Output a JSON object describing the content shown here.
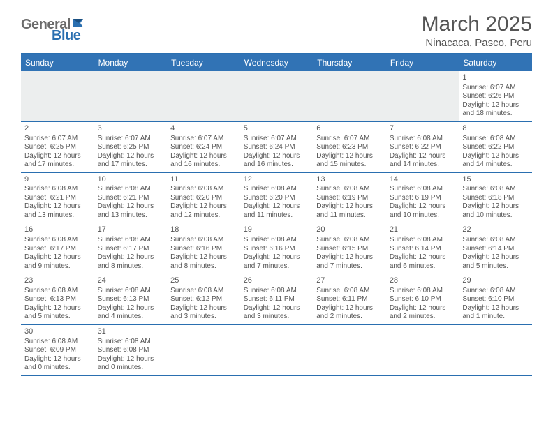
{
  "brand": {
    "gray": "General",
    "blue": "Blue"
  },
  "title": "March 2025",
  "location": "Ninacaca, Pasco, Peru",
  "colors": {
    "header_bg": "#3173b5",
    "rule": "#2a6fb0",
    "text": "#555555",
    "logo_gray": "#6b6b6b",
    "logo_blue": "#2a6fb0",
    "empty_row_bg": "#eceeee"
  },
  "weekdays": [
    "Sunday",
    "Monday",
    "Tuesday",
    "Wednesday",
    "Thursday",
    "Friday",
    "Saturday"
  ],
  "weeks": [
    [
      null,
      null,
      null,
      null,
      null,
      null,
      {
        "d": "1",
        "sr": "Sunrise: 6:07 AM",
        "ss": "Sunset: 6:26 PM",
        "dl": "Daylight: 12 hours and 18 minutes."
      }
    ],
    [
      {
        "d": "2",
        "sr": "Sunrise: 6:07 AM",
        "ss": "Sunset: 6:25 PM",
        "dl": "Daylight: 12 hours and 17 minutes."
      },
      {
        "d": "3",
        "sr": "Sunrise: 6:07 AM",
        "ss": "Sunset: 6:25 PM",
        "dl": "Daylight: 12 hours and 17 minutes."
      },
      {
        "d": "4",
        "sr": "Sunrise: 6:07 AM",
        "ss": "Sunset: 6:24 PM",
        "dl": "Daylight: 12 hours and 16 minutes."
      },
      {
        "d": "5",
        "sr": "Sunrise: 6:07 AM",
        "ss": "Sunset: 6:24 PM",
        "dl": "Daylight: 12 hours and 16 minutes."
      },
      {
        "d": "6",
        "sr": "Sunrise: 6:07 AM",
        "ss": "Sunset: 6:23 PM",
        "dl": "Daylight: 12 hours and 15 minutes."
      },
      {
        "d": "7",
        "sr": "Sunrise: 6:08 AM",
        "ss": "Sunset: 6:22 PM",
        "dl": "Daylight: 12 hours and 14 minutes."
      },
      {
        "d": "8",
        "sr": "Sunrise: 6:08 AM",
        "ss": "Sunset: 6:22 PM",
        "dl": "Daylight: 12 hours and 14 minutes."
      }
    ],
    [
      {
        "d": "9",
        "sr": "Sunrise: 6:08 AM",
        "ss": "Sunset: 6:21 PM",
        "dl": "Daylight: 12 hours and 13 minutes."
      },
      {
        "d": "10",
        "sr": "Sunrise: 6:08 AM",
        "ss": "Sunset: 6:21 PM",
        "dl": "Daylight: 12 hours and 13 minutes."
      },
      {
        "d": "11",
        "sr": "Sunrise: 6:08 AM",
        "ss": "Sunset: 6:20 PM",
        "dl": "Daylight: 12 hours and 12 minutes."
      },
      {
        "d": "12",
        "sr": "Sunrise: 6:08 AM",
        "ss": "Sunset: 6:20 PM",
        "dl": "Daylight: 12 hours and 11 minutes."
      },
      {
        "d": "13",
        "sr": "Sunrise: 6:08 AM",
        "ss": "Sunset: 6:19 PM",
        "dl": "Daylight: 12 hours and 11 minutes."
      },
      {
        "d": "14",
        "sr": "Sunrise: 6:08 AM",
        "ss": "Sunset: 6:19 PM",
        "dl": "Daylight: 12 hours and 10 minutes."
      },
      {
        "d": "15",
        "sr": "Sunrise: 6:08 AM",
        "ss": "Sunset: 6:18 PM",
        "dl": "Daylight: 12 hours and 10 minutes."
      }
    ],
    [
      {
        "d": "16",
        "sr": "Sunrise: 6:08 AM",
        "ss": "Sunset: 6:17 PM",
        "dl": "Daylight: 12 hours and 9 minutes."
      },
      {
        "d": "17",
        "sr": "Sunrise: 6:08 AM",
        "ss": "Sunset: 6:17 PM",
        "dl": "Daylight: 12 hours and 8 minutes."
      },
      {
        "d": "18",
        "sr": "Sunrise: 6:08 AM",
        "ss": "Sunset: 6:16 PM",
        "dl": "Daylight: 12 hours and 8 minutes."
      },
      {
        "d": "19",
        "sr": "Sunrise: 6:08 AM",
        "ss": "Sunset: 6:16 PM",
        "dl": "Daylight: 12 hours and 7 minutes."
      },
      {
        "d": "20",
        "sr": "Sunrise: 6:08 AM",
        "ss": "Sunset: 6:15 PM",
        "dl": "Daylight: 12 hours and 7 minutes."
      },
      {
        "d": "21",
        "sr": "Sunrise: 6:08 AM",
        "ss": "Sunset: 6:14 PM",
        "dl": "Daylight: 12 hours and 6 minutes."
      },
      {
        "d": "22",
        "sr": "Sunrise: 6:08 AM",
        "ss": "Sunset: 6:14 PM",
        "dl": "Daylight: 12 hours and 5 minutes."
      }
    ],
    [
      {
        "d": "23",
        "sr": "Sunrise: 6:08 AM",
        "ss": "Sunset: 6:13 PM",
        "dl": "Daylight: 12 hours and 5 minutes."
      },
      {
        "d": "24",
        "sr": "Sunrise: 6:08 AM",
        "ss": "Sunset: 6:13 PM",
        "dl": "Daylight: 12 hours and 4 minutes."
      },
      {
        "d": "25",
        "sr": "Sunrise: 6:08 AM",
        "ss": "Sunset: 6:12 PM",
        "dl": "Daylight: 12 hours and 3 minutes."
      },
      {
        "d": "26",
        "sr": "Sunrise: 6:08 AM",
        "ss": "Sunset: 6:11 PM",
        "dl": "Daylight: 12 hours and 3 minutes."
      },
      {
        "d": "27",
        "sr": "Sunrise: 6:08 AM",
        "ss": "Sunset: 6:11 PM",
        "dl": "Daylight: 12 hours and 2 minutes."
      },
      {
        "d": "28",
        "sr": "Sunrise: 6:08 AM",
        "ss": "Sunset: 6:10 PM",
        "dl": "Daylight: 12 hours and 2 minutes."
      },
      {
        "d": "29",
        "sr": "Sunrise: 6:08 AM",
        "ss": "Sunset: 6:10 PM",
        "dl": "Daylight: 12 hours and 1 minute."
      }
    ],
    [
      {
        "d": "30",
        "sr": "Sunrise: 6:08 AM",
        "ss": "Sunset: 6:09 PM",
        "dl": "Daylight: 12 hours and 0 minutes."
      },
      {
        "d": "31",
        "sr": "Sunrise: 6:08 AM",
        "ss": "Sunset: 6:08 PM",
        "dl": "Daylight: 12 hours and 0 minutes."
      },
      null,
      null,
      null,
      null,
      null
    ]
  ]
}
